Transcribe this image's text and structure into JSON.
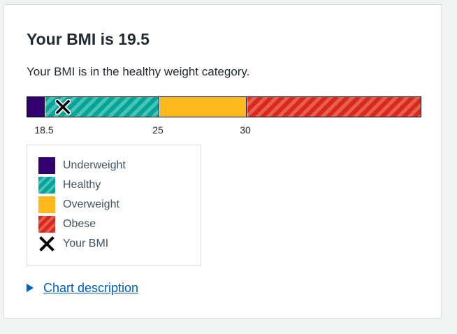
{
  "result": {
    "title": "Your BMI is 19.5",
    "summary": "Your BMI is in the healthy weight category.",
    "bmi_value": 19.5
  },
  "scale": {
    "ticks": [
      "18.5",
      "25",
      "30"
    ],
    "segments": [
      {
        "name": "Underweight",
        "color": "#330072"
      },
      {
        "name": "Healthy",
        "color": "#00a499"
      },
      {
        "name": "Overweight",
        "color": "#ffb81c"
      },
      {
        "name": "Obese",
        "color": "#da291c"
      }
    ]
  },
  "legend": {
    "items": [
      {
        "label": "Underweight",
        "icon": "underweight-swatch"
      },
      {
        "label": "Healthy",
        "icon": "healthy-swatch"
      },
      {
        "label": "Overweight",
        "icon": "overweight-swatch"
      },
      {
        "label": "Obese",
        "icon": "obese-swatch"
      },
      {
        "label": "Your BMI",
        "icon": "cross-icon"
      }
    ]
  },
  "details": {
    "label": "Chart description",
    "expanded": false
  }
}
